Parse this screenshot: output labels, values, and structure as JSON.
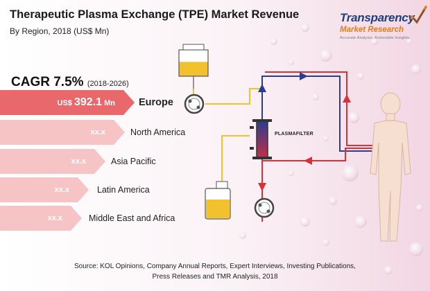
{
  "header": {
    "title": "Therapeutic Plasma Exchange (TPE) Market Revenue",
    "subtitle": "By Region, 2018 (US$ Mn)"
  },
  "logo": {
    "name_line1": "Transparency",
    "name_line2": "Market Research",
    "tagline": "Accurate Analysis. Actionable Insights."
  },
  "cagr": {
    "label": "CAGR 7.5%",
    "period": "(2018-2026)"
  },
  "regions": [
    {
      "name": "Europe",
      "value_prefix": "US$",
      "value": "392.1",
      "value_suffix": "Mn",
      "highlight": true
    },
    {
      "name": "North America",
      "value_prefix": "",
      "value": "xx.x",
      "value_suffix": "",
      "highlight": false
    },
    {
      "name": "Asia Pacific",
      "value_prefix": "",
      "value": "xx.x",
      "value_suffix": "",
      "highlight": false
    },
    {
      "name": "Latin America",
      "value_prefix": "",
      "value": "xx.x",
      "value_suffix": "",
      "highlight": false
    },
    {
      "name": "Middle East and Africa",
      "value_prefix": "",
      "value": "xx.x",
      "value_suffix": "",
      "highlight": false
    }
  ],
  "diagram": {
    "filter_label": "PLASMAFILTER"
  },
  "colors": {
    "bar_dark": "#e8686c",
    "bar_light": "#f6c4c4",
    "blood_red": "#d9303a",
    "blood_blue": "#2b3d8f",
    "plasma_yellow": "#f2c22e",
    "skin": "#f6dfd0"
  },
  "footer": {
    "source_line1": "Source: KOL Opinions, Company Annual Reports, Expert Interviews, Investing Publications,",
    "source_line2": "Press Releases and TMR Analysis, 2018"
  }
}
